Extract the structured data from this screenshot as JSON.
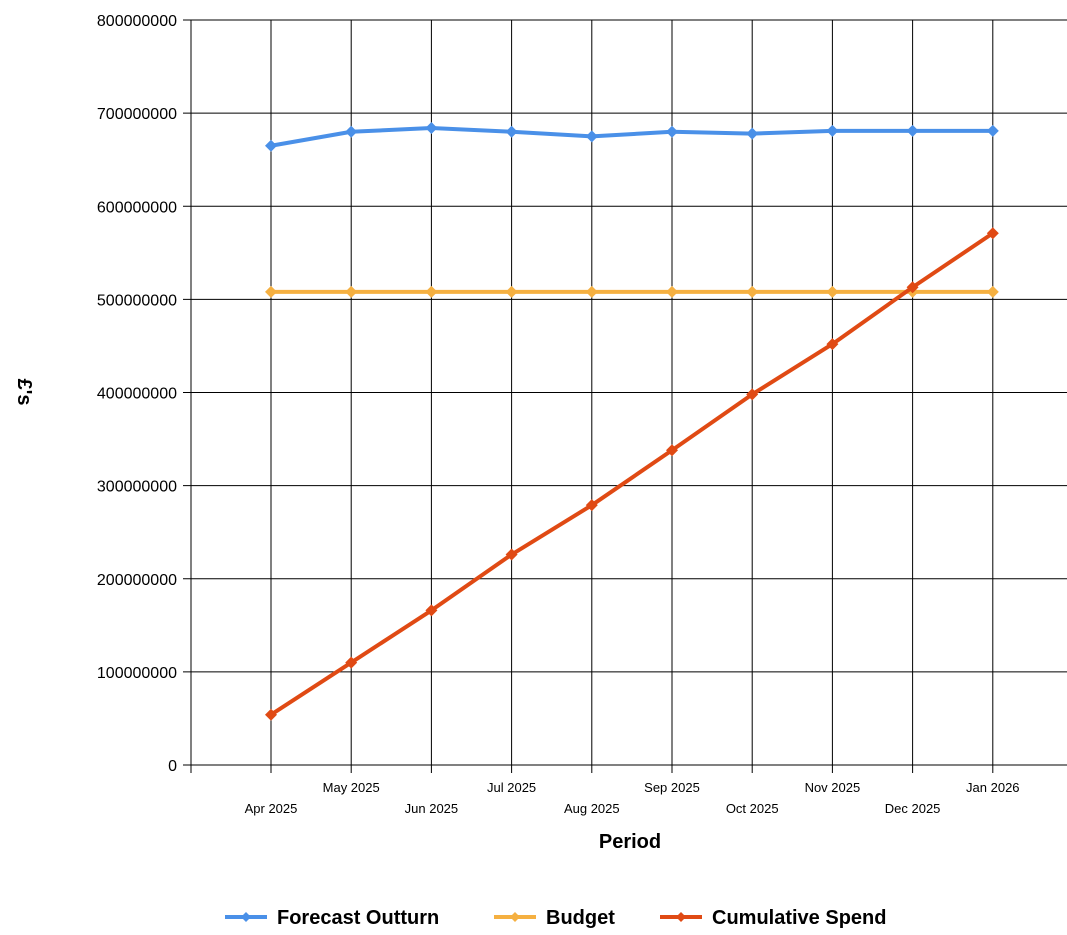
{
  "chart_data": {
    "type": "line",
    "xlabel": "Period",
    "ylabel": "£'s",
    "ylim": [
      0,
      800000000
    ],
    "yticks": [
      0,
      100000000,
      200000000,
      300000000,
      400000000,
      500000000,
      600000000,
      700000000,
      800000000
    ],
    "categories": [
      "Apr 2025",
      "May 2025",
      "Jun 2025",
      "Jul 2025",
      "Aug 2025",
      "Sep 2025",
      "Oct 2025",
      "Nov 2025",
      "Dec 2025",
      "Jan 2026"
    ],
    "grid": true,
    "legend_position": "bottom",
    "series": [
      {
        "name": "Forecast Outturn",
        "color": "#4a90e8",
        "values": [
          665000000,
          680000000,
          684000000,
          680000000,
          675000000,
          680000000,
          678000000,
          681000000,
          681000000,
          681000000
        ]
      },
      {
        "name": "Budget",
        "color": "#f5b041",
        "values": [
          508000000,
          508000000,
          508000000,
          508000000,
          508000000,
          508000000,
          508000000,
          508000000,
          508000000,
          508000000
        ]
      },
      {
        "name": "Cumulative Spend",
        "color": "#e04a14",
        "values": [
          54000000,
          110000000,
          166000000,
          226000000,
          279000000,
          338000000,
          398000000,
          452000000,
          513000000,
          571000000
        ]
      }
    ]
  }
}
